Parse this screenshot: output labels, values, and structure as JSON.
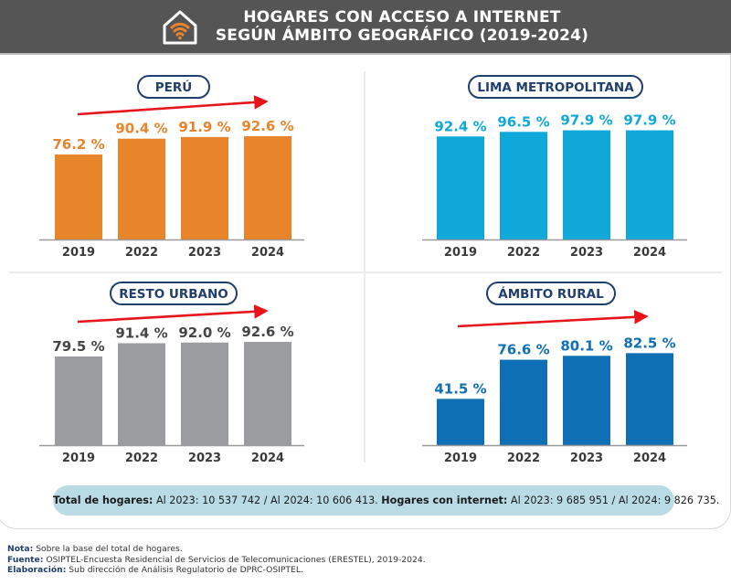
{
  "header": {
    "title_line1": "HOGARES CON ACCESO A INTERNET",
    "title_line2": "SEGÚN ÁMBITO GEOGRÁFICO (2019-2024)",
    "icon": "house-wifi-icon",
    "icon_accent": "#e8842a"
  },
  "chart_data": [
    {
      "type": "bar",
      "title": "PERÚ",
      "categories": [
        "2019",
        "2022",
        "2023",
        "2024"
      ],
      "values": [
        76.2,
        90.4,
        91.9,
        92.6
      ],
      "labels": [
        "76.2 %",
        "90.4 %",
        "91.9 %",
        "92.6 %"
      ],
      "unit": "%",
      "color": "#e8842a",
      "label_color": "#e8842a",
      "trend_arrow": true,
      "ylim": [
        0,
        100
      ],
      "grid": false,
      "xlabel": "",
      "ylabel": ""
    },
    {
      "type": "bar",
      "title": "LIMA METROPOLITANA",
      "categories": [
        "2019",
        "2022",
        "2023",
        "2024"
      ],
      "values": [
        92.4,
        96.5,
        97.9,
        97.9
      ],
      "labels": [
        "92.4 %",
        "96.5 %",
        "97.9 %",
        "97.9 %"
      ],
      "unit": "%",
      "color": "#10a8d8",
      "label_color": "#10a8d8",
      "trend_arrow": false,
      "ylim": [
        0,
        100
      ],
      "grid": false,
      "xlabel": "",
      "ylabel": ""
    },
    {
      "type": "bar",
      "title": "RESTO URBANO",
      "categories": [
        "2019",
        "2022",
        "2023",
        "2024"
      ],
      "values": [
        79.5,
        91.4,
        92.0,
        92.6
      ],
      "labels": [
        "79.5 %",
        "91.4 %",
        "92.0 %",
        "92.6 %"
      ],
      "unit": "%",
      "color": "#9a9c9f",
      "label_color": "#454545",
      "trend_arrow": true,
      "ylim": [
        0,
        100
      ],
      "grid": false,
      "xlabel": "",
      "ylabel": ""
    },
    {
      "type": "bar",
      "title": "ÁMBITO RURAL",
      "categories": [
        "2019",
        "2022",
        "2023",
        "2024"
      ],
      "values": [
        41.5,
        76.6,
        80.1,
        82.5
      ],
      "labels": [
        "41.5 %",
        "76.6 %",
        "80.1 %",
        "82.5 %"
      ],
      "unit": "%",
      "color": "#0f6fb4",
      "label_color": "#0f6fb4",
      "trend_arrow": true,
      "ylim": [
        0,
        100
      ],
      "grid": false,
      "xlabel": "",
      "ylabel": ""
    }
  ],
  "colors": {
    "header_bg": "#555555",
    "pill_border": "#1f3f6e",
    "arrow": "#e8141c",
    "totals_bg": "#b8dbe6"
  },
  "totals": {
    "hogares_label": "Total de hogares:",
    "hogares_text": " Al 2023: 10 537 742 / Al 2024: 10 606 413. ",
    "internet_label": "Hogares con internet:",
    "internet_text": " Al 2023: 9 685 951 / Al 2024: 9 826 735."
  },
  "notes": {
    "nota_label": "Nota:",
    "nota_text": " Sobre la base del total de hogares.",
    "fuente_label": "Fuente:",
    "fuente_text": " OSIPTEL-Encuesta Residencial de Servicios de Telecomunicaciones (ERESTEL), 2019-2024.",
    "elaboracion_label": "Elaboración:",
    "elaboracion_text": " Sub dirección de Análisis Regulatorio de DPRC-OSIPTEL."
  }
}
